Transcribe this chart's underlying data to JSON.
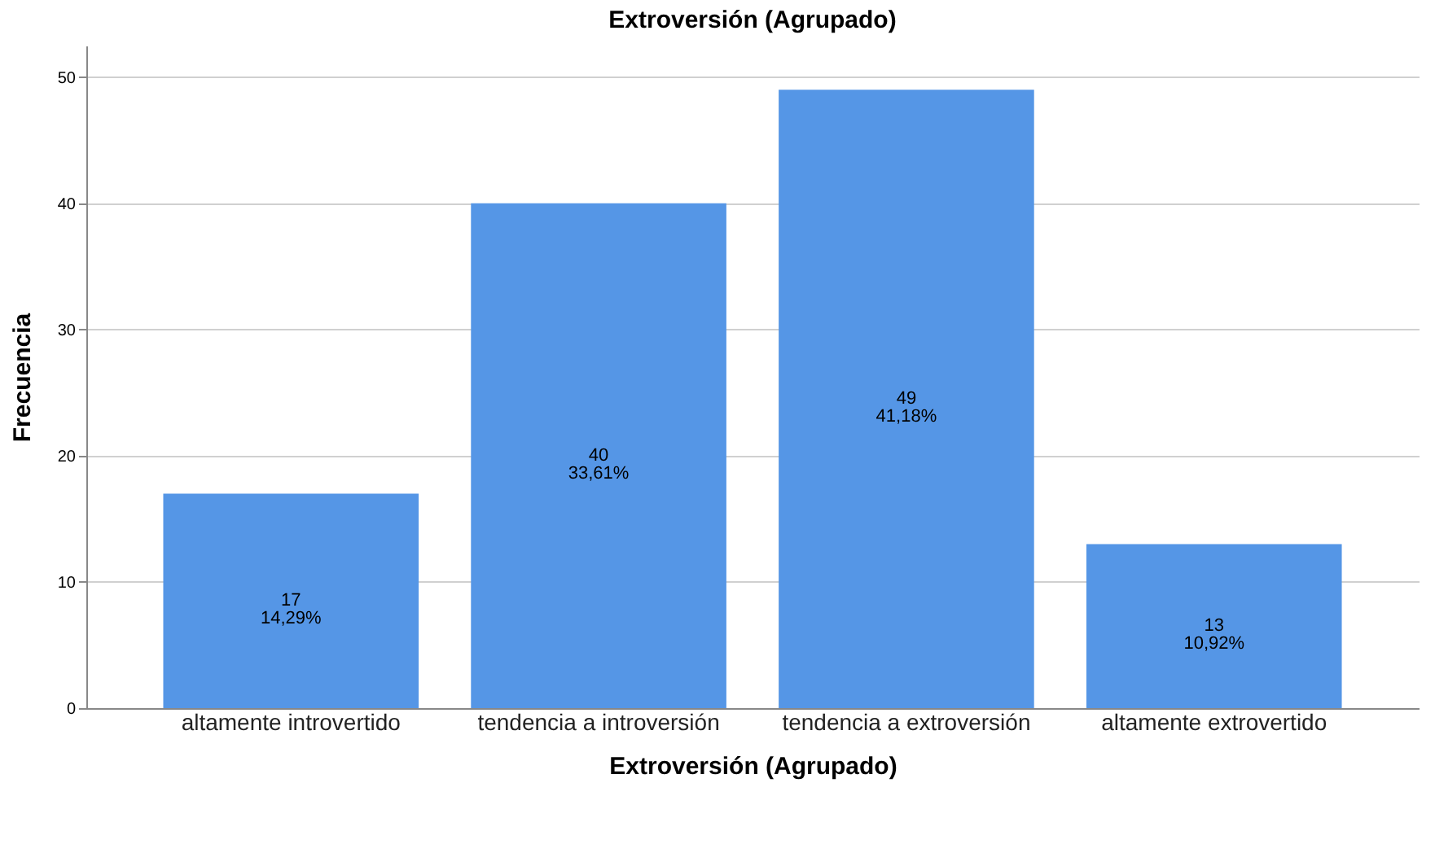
{
  "chart_data": {
    "type": "bar",
    "title": "Extroversión (Agrupado)",
    "xlabel": "Extroversión (Agrupado)",
    "ylabel": "Frecuencia",
    "categories": [
      "altamente introvertido",
      "tendencia a introversión",
      "tendencia a extroversión",
      "altamente extrovertido"
    ],
    "values": [
      17,
      40,
      49,
      13
    ],
    "value_labels": [
      "17\n14,29%",
      "40\n33,61%",
      "49\n41,18%",
      "13\n10,92%"
    ],
    "color": "#5596e6",
    "ylim": [
      0,
      52.5
    ],
    "yticks": [
      0,
      10,
      20,
      30,
      40,
      50
    ],
    "grid": "y"
  }
}
